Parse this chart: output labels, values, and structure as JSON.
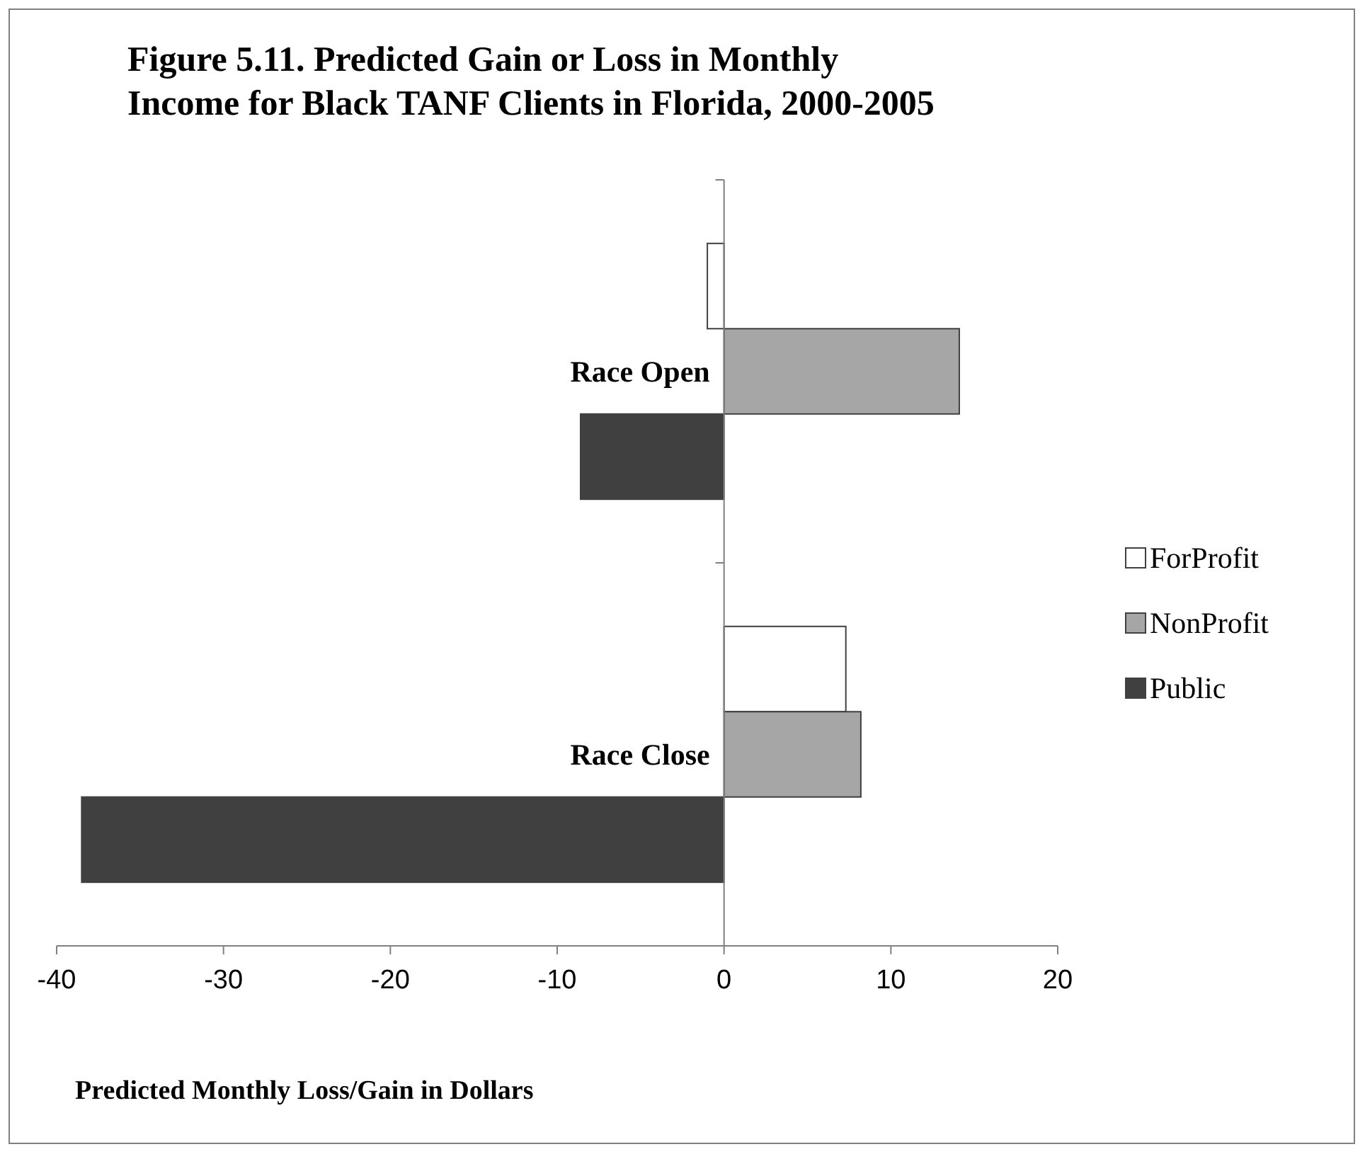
{
  "chart_data": {
    "type": "bar",
    "orientation": "horizontal",
    "title": "Figure 5.11.  Predicted Gain or Loss in Monthly\nIncome for Black TANF Clients in Florida, 2000-2005",
    "xlabel": "Predicted Monthly Loss/Gain in Dollars",
    "categories": [
      "Race Open",
      "Race Close"
    ],
    "series": [
      {
        "name": "ForProfit",
        "color": "#ffffff",
        "values": [
          -1.0,
          7.3
        ]
      },
      {
        "name": "NonProfit",
        "color": "#a6a6a6",
        "values": [
          14.1,
          8.2
        ]
      },
      {
        "name": "Public",
        "color": "#404040",
        "values": [
          -8.6,
          -38.5
        ]
      }
    ],
    "xlim": [
      -40,
      20
    ],
    "xticks": [
      -40,
      -30,
      -20,
      -10,
      0,
      10,
      20
    ],
    "grid": false,
    "legend": "right"
  }
}
